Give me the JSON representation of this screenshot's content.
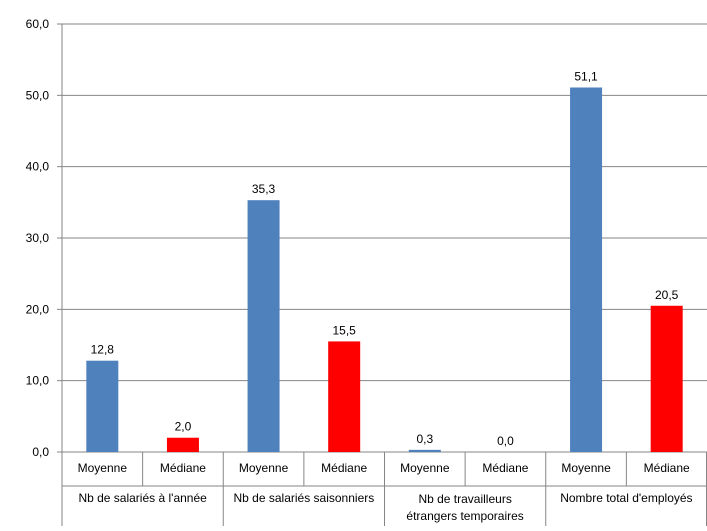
{
  "chart_data": {
    "type": "bar",
    "categories": [
      "Nb de salariés à l'année",
      "Nb de salariés saisonniers",
      "Nb de travailleurs étrangers temporaires",
      "Nombre total d'employés"
    ],
    "category_label_lines": [
      [
        "Nb de salariés à l'année"
      ],
      [
        "Nb de salariés saisonniers"
      ],
      [
        "Nb de travailleurs",
        "étrangers temporaires"
      ],
      [
        "Nombre total d'employés"
      ]
    ],
    "subcategories": [
      "Moyenne",
      "Médiane"
    ],
    "bars": [
      {
        "group": 0,
        "sub": "Moyenne",
        "value": 12.8,
        "label": "12,8",
        "color": "#4F81BD"
      },
      {
        "group": 0,
        "sub": "Médiane",
        "value": 2.0,
        "label": "2,0",
        "color": "#FF0000"
      },
      {
        "group": 1,
        "sub": "Moyenne",
        "value": 35.3,
        "label": "35,3",
        "color": "#4F81BD"
      },
      {
        "group": 1,
        "sub": "Médiane",
        "value": 15.5,
        "label": "15,5",
        "color": "#FF0000"
      },
      {
        "group": 2,
        "sub": "Moyenne",
        "value": 0.3,
        "label": "0,3",
        "color": "#4F81BD"
      },
      {
        "group": 2,
        "sub": "Médiane",
        "value": 0.0,
        "label": "0,0",
        "color": "#FF0000"
      },
      {
        "group": 3,
        "sub": "Moyenne",
        "value": 51.1,
        "label": "51,1",
        "color": "#4F81BD"
      },
      {
        "group": 3,
        "sub": "Médiane",
        "value": 20.5,
        "label": "20,5",
        "color": "#FF0000"
      }
    ],
    "y_ticks": [
      {
        "value": 0,
        "label": "0,0"
      },
      {
        "value": 10,
        "label": "10,0"
      },
      {
        "value": 20,
        "label": "20,0"
      },
      {
        "value": 30,
        "label": "30,0"
      },
      {
        "value": 40,
        "label": "40,0"
      },
      {
        "value": 50,
        "label": "50,0"
      },
      {
        "value": 60,
        "label": "60,0"
      }
    ],
    "ylim": [
      0,
      60
    ],
    "grid": true,
    "legend": "none",
    "title": "",
    "xlabel": "",
    "ylabel": ""
  }
}
